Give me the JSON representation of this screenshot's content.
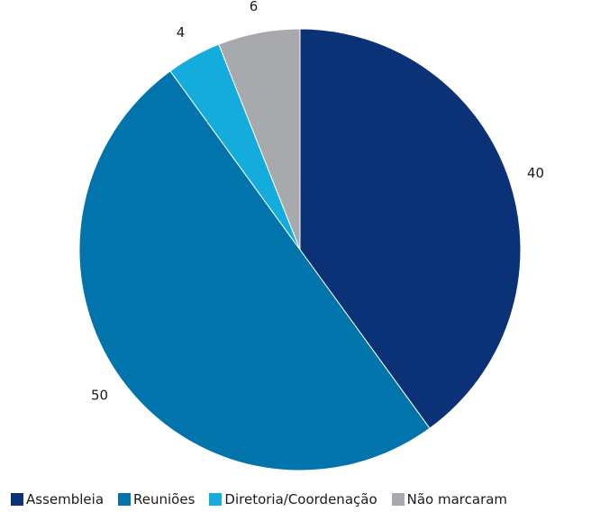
{
  "chart_data": {
    "type": "pie",
    "title": "",
    "categories": [
      "Assembleia",
      "Reuniões",
      "Diretoria/Coordenação",
      "Não marcaram"
    ],
    "values": [
      40,
      50,
      4,
      6
    ],
    "data_labels": [
      "40",
      "50",
      "4",
      "6"
    ],
    "colors": [
      "#0b3277",
      "#0074ab",
      "#14acdc",
      "#a7a9ac"
    ],
    "start_angle": "12 o'clock",
    "direction": "clockwise",
    "legend": "bottom"
  }
}
